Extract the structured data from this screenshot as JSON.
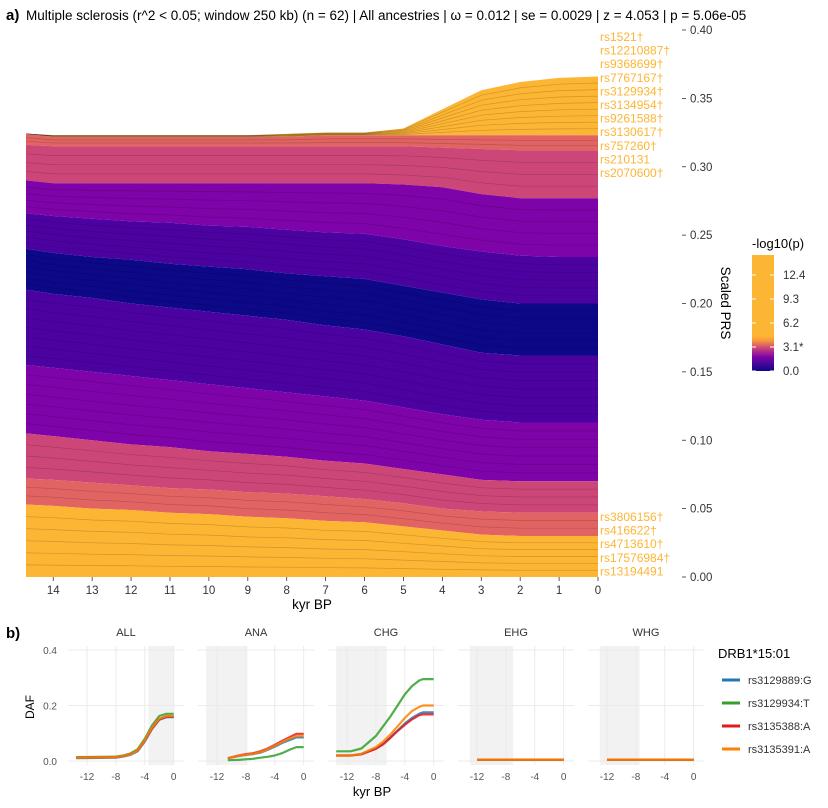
{
  "panel_a": {
    "label": "a)",
    "title": "Multiple sclerosis (r^2 < 0.05; window 250 kb) (n = 62) | All ancestries | ω = 0.012 | se = 0.0029 | z = 4.053 | p = 5.06e-05",
    "legend_title": "-log10(p)",
    "legend_ticks": [
      "12.4",
      "9.3",
      "6.2",
      "3.1*",
      "0.0"
    ],
    "snp_labels_top": [
      "rs1521†",
      "rs12210887†",
      "rs9368699†",
      "rs7767167†",
      "rs3129934†",
      "rs3134954†",
      "rs9261588†",
      "rs3130617†",
      "rs757260†",
      "rs210131",
      "rs2070600†"
    ],
    "snp_labels_bottom": [
      "rs3806156†",
      "rs416622†",
      "rs4713610†",
      "rs17576984†",
      "rs13194491"
    ]
  },
  "panel_b": {
    "label": "b)",
    "ylabel": "DAF",
    "xlabel": "kyr BP",
    "legend_title": "DRB1*15:01"
  },
  "colors": {
    "high_sig": "#FDB534",
    "orange": "#F89540",
    "salmon": "#E16462",
    "rose": "#CC4778",
    "magenta": "#B12A90",
    "purple": "#7E03A8",
    "indigo": "#4C02A1",
    "navy": "#0D0887",
    "shade": "#F2F2F2",
    "grid": "#EBEBEB"
  },
  "chart_data": [
    {
      "type": "area",
      "title": "Multiple sclerosis (r^2 < 0.05; window 250 kb) (n = 62) | All ancestries | ω = 0.012 | se = 0.0029 | z = 4.053 | p = 5.06e-05",
      "xlabel": "kyr BP",
      "ylabel": "Scaled PRS",
      "x_reversed": true,
      "xlim": [
        14.7,
        0
      ],
      "ylim": [
        0,
        0.4
      ],
      "x_ticks": [
        14,
        13,
        12,
        11,
        10,
        9,
        8,
        7,
        6,
        5,
        4,
        3,
        2,
        1,
        0
      ],
      "y_ticks": [
        "0.00",
        "0.05",
        "0.10",
        "0.15",
        "0.20",
        "0.25",
        "0.30",
        "0.35",
        "0.40"
      ],
      "grid": false,
      "legend": "right",
      "legend_title": "-log10(p)",
      "n_snps": 62,
      "x": [
        14.7,
        14,
        13,
        12,
        11,
        10,
        9,
        8,
        7,
        6,
        5,
        4,
        3,
        2,
        1,
        0
      ],
      "total_top": [
        0.324,
        0.323,
        0.323,
        0.323,
        0.323,
        0.323,
        0.323,
        0.324,
        0.325,
        0.325,
        0.328,
        0.342,
        0.356,
        0.362,
        0.365,
        0.366
      ],
      "group_boundaries": [
        {
          "name": "top_orange_upper",
          "values": [
            0.324,
            0.322,
            0.322,
            0.322,
            0.322,
            0.322,
            0.322,
            0.322,
            0.323,
            0.323,
            0.323,
            0.323,
            0.323,
            0.323,
            0.323,
            0.323
          ]
        },
        {
          "name": "salmon_upper",
          "values": [
            0.316,
            0.315,
            0.315,
            0.315,
            0.315,
            0.315,
            0.315,
            0.315,
            0.315,
            0.315,
            0.315,
            0.314,
            0.313,
            0.312,
            0.312,
            0.312
          ]
        },
        {
          "name": "rose_upper",
          "values": [
            0.29,
            0.288,
            0.288,
            0.288,
            0.288,
            0.288,
            0.288,
            0.288,
            0.288,
            0.288,
            0.287,
            0.285,
            0.28,
            0.277,
            0.277,
            0.277
          ]
        },
        {
          "name": "purple_upper",
          "values": [
            0.266,
            0.264,
            0.262,
            0.26,
            0.259,
            0.257,
            0.256,
            0.254,
            0.252,
            0.251,
            0.247,
            0.242,
            0.238,
            0.235,
            0.234,
            0.234
          ]
        },
        {
          "name": "indigo_upper",
          "values": [
            0.24,
            0.237,
            0.234,
            0.232,
            0.229,
            0.227,
            0.225,
            0.222,
            0.22,
            0.218,
            0.213,
            0.208,
            0.203,
            0.2,
            0.2,
            0.2
          ]
        },
        {
          "name": "navy_mid",
          "values": [
            0.21,
            0.207,
            0.204,
            0.2,
            0.197,
            0.194,
            0.191,
            0.188,
            0.184,
            0.181,
            0.176,
            0.17,
            0.164,
            0.162,
            0.162,
            0.162
          ]
        },
        {
          "name": "purple_lower",
          "values": [
            0.155,
            0.153,
            0.15,
            0.147,
            0.144,
            0.141,
            0.138,
            0.135,
            0.132,
            0.129,
            0.124,
            0.119,
            0.115,
            0.113,
            0.113,
            0.113
          ]
        },
        {
          "name": "magenta_lower",
          "values": [
            0.105,
            0.103,
            0.1,
            0.097,
            0.095,
            0.092,
            0.09,
            0.088,
            0.085,
            0.083,
            0.079,
            0.075,
            0.071,
            0.07,
            0.07,
            0.07
          ]
        },
        {
          "name": "rose_lower",
          "values": [
            0.072,
            0.071,
            0.069,
            0.067,
            0.065,
            0.064,
            0.062,
            0.061,
            0.059,
            0.057,
            0.054,
            0.05,
            0.048,
            0.047,
            0.047,
            0.047
          ]
        },
        {
          "name": "bottom_orange_upper",
          "values": [
            0.053,
            0.052,
            0.05,
            0.049,
            0.047,
            0.046,
            0.044,
            0.043,
            0.041,
            0.04,
            0.037,
            0.034,
            0.031,
            0.03,
            0.03,
            0.03
          ]
        }
      ]
    },
    {
      "type": "line",
      "ylabel": "DAF",
      "xlabel": "kyr BP",
      "ylim": [
        0,
        0.4
      ],
      "y_ticks": [
        "0.0",
        "0.2",
        "0.4"
      ],
      "x_ticks": [
        "-12",
        "-8",
        "-4",
        "0"
      ],
      "legend": "right",
      "legend_title": "DRB1*15:01",
      "series_names": [
        "rs3129889:G",
        "rs3129934:T",
        "rs3135388:A",
        "rs3135391:A"
      ],
      "series_colors": [
        "#1F78B4",
        "#33A02C",
        "#E31A1C",
        "#FF7F00"
      ],
      "facets": [
        {
          "name": "ALL",
          "shade": [
            -3.5,
            0
          ],
          "x": [
            -13.5,
            -10,
            -8,
            -7,
            -6,
            -5,
            -4,
            -3,
            -2,
            -1,
            0
          ],
          "series": [
            {
              "name": "rs3129889:G",
              "values": [
                0.01,
                0.011,
                0.012,
                0.016,
                0.022,
                0.035,
                0.07,
                0.115,
                0.148,
                0.158,
                0.158
              ]
            },
            {
              "name": "rs3129934:T",
              "values": [
                0.014,
                0.015,
                0.016,
                0.02,
                0.027,
                0.042,
                0.08,
                0.128,
                0.162,
                0.17,
                0.17
              ]
            },
            {
              "name": "rs3135388:A",
              "values": [
                0.012,
                0.013,
                0.014,
                0.018,
                0.024,
                0.038,
                0.074,
                0.118,
                0.15,
                0.16,
                0.16
              ]
            },
            {
              "name": "rs3135391:A",
              "values": [
                0.012,
                0.013,
                0.014,
                0.018,
                0.024,
                0.038,
                0.075,
                0.12,
                0.152,
                0.162,
                0.162
              ]
            }
          ]
        },
        {
          "name": "ANA",
          "shade": [
            -13.5,
            -7.8
          ],
          "x": [
            -10.5,
            -9,
            -8,
            -7,
            -6,
            -5,
            -4,
            -3,
            -2,
            -1,
            0
          ],
          "series": [
            {
              "name": "rs3129889:G",
              "values": [
                0.01,
                0.018,
                0.022,
                0.025,
                0.03,
                0.04,
                0.052,
                0.065,
                0.075,
                0.085,
                0.085
              ]
            },
            {
              "name": "rs3129934:T",
              "values": [
                0.003,
                0.004,
                0.006,
                0.008,
                0.012,
                0.015,
                0.02,
                0.028,
                0.04,
                0.05,
                0.05
              ]
            },
            {
              "name": "rs3135388:A",
              "values": [
                0.01,
                0.02,
                0.025,
                0.028,
                0.035,
                0.045,
                0.058,
                0.072,
                0.085,
                0.098,
                0.098
              ]
            },
            {
              "name": "rs3135391:A",
              "values": [
                0.01,
                0.019,
                0.023,
                0.026,
                0.032,
                0.042,
                0.055,
                0.068,
                0.08,
                0.09,
                0.09
              ]
            }
          ]
        },
        {
          "name": "CHG",
          "shade": [
            -13.5,
            -6.5
          ],
          "x": [
            -13.5,
            -11.5,
            -10,
            -8,
            -7,
            -6,
            -5,
            -4,
            -3,
            -2,
            -1.5,
            0
          ],
          "series": [
            {
              "name": "rs3129889:G",
              "values": [
                0.02,
                0.02,
                0.025,
                0.045,
                0.062,
                0.085,
                0.11,
                0.135,
                0.155,
                0.17,
                0.175,
                0.175
              ]
            },
            {
              "name": "rs3129934:T",
              "values": [
                0.035,
                0.035,
                0.045,
                0.09,
                0.125,
                0.16,
                0.2,
                0.24,
                0.27,
                0.29,
                0.295,
                0.295
              ]
            },
            {
              "name": "rs3135388:A",
              "values": [
                0.02,
                0.02,
                0.024,
                0.044,
                0.06,
                0.083,
                0.108,
                0.13,
                0.15,
                0.165,
                0.168,
                0.168
              ]
            },
            {
              "name": "rs3135391:A",
              "values": [
                0.02,
                0.02,
                0.026,
                0.05,
                0.07,
                0.095,
                0.125,
                0.155,
                0.18,
                0.195,
                0.2,
                0.2
              ]
            }
          ]
        },
        {
          "name": "EHG",
          "shade": [
            -13,
            -7
          ],
          "x": [
            -12,
            -8,
            -4,
            0
          ],
          "series": [
            {
              "name": "rs3129889:G",
              "values": [
                0.005,
                0.005,
                0.005,
                0.005
              ]
            },
            {
              "name": "rs3129934:T",
              "values": [
                0.005,
                0.005,
                0.005,
                0.005
              ]
            },
            {
              "name": "rs3135388:A",
              "values": [
                0.005,
                0.005,
                0.005,
                0.005
              ]
            },
            {
              "name": "rs3135391:A",
              "values": [
                0.005,
                0.005,
                0.005,
                0.005
              ]
            }
          ]
        },
        {
          "name": "WHG",
          "shade": [
            -13,
            -7.5
          ],
          "x": [
            -12,
            -8,
            -4,
            0
          ],
          "series": [
            {
              "name": "rs3129889:G",
              "values": [
                0.005,
                0.005,
                0.005,
                0.005
              ]
            },
            {
              "name": "rs3129934:T",
              "values": [
                0.005,
                0.005,
                0.005,
                0.005
              ]
            },
            {
              "name": "rs3135388:A",
              "values": [
                0.005,
                0.005,
                0.005,
                0.005
              ]
            },
            {
              "name": "rs3135391:A",
              "values": [
                0.005,
                0.005,
                0.005,
                0.005
              ]
            }
          ]
        }
      ]
    }
  ]
}
